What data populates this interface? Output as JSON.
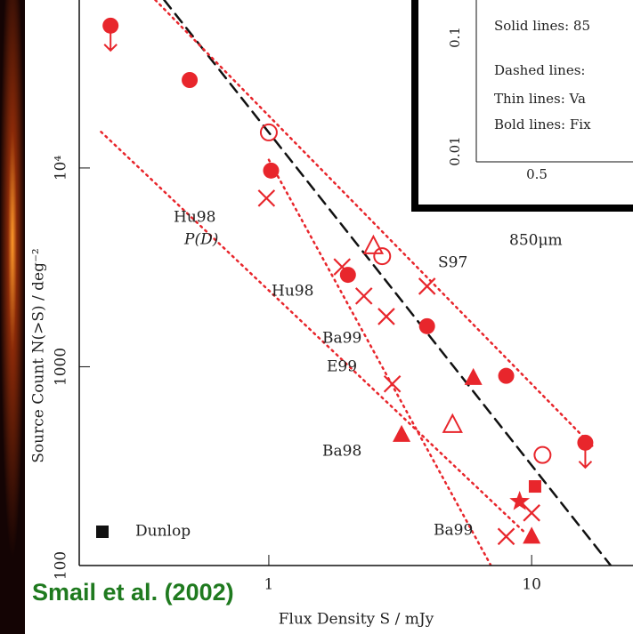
{
  "chart_data": {
    "type": "scatter",
    "xlabel": "Flux Density S / mJy",
    "ylabel": "Source Count N(>S) / deg⁻²",
    "xlog": true,
    "ylog": true,
    "xlim": [
      0.19,
      24.3
    ],
    "ylim": [
      100,
      70000
    ],
    "xticks": [
      1,
      10
    ],
    "yticks": [
      100,
      1000,
      {
        "value": 10000,
        "label": "10⁴"
      }
    ],
    "series": [
      {
        "marker": "circle",
        "color": "#e8262c",
        "x": [
          0.25,
          0.5,
          1.02,
          2.0,
          4.0,
          8.0,
          16
        ],
        "values": [
          52000,
          27700,
          9700,
          2900,
          1600,
          900,
          415
        ],
        "upper_limit": [
          true,
          false,
          false,
          false,
          false,
          false,
          true
        ]
      },
      {
        "marker": "open-circle",
        "color": "#e8262c",
        "x": [
          1.0,
          2.7,
          11
        ],
        "values": [
          15100,
          3600,
          360
        ]
      },
      {
        "marker": "cross",
        "color": "#e8262c",
        "x": [
          0.98,
          1.9,
          2.3,
          2.8,
          2.95,
          4.0,
          8.0,
          10
        ],
        "values": [
          7050,
          3180,
          2270,
          1790,
          820,
          2540,
          140,
          184
        ]
      },
      {
        "marker": "triangle",
        "color": "#e8262c",
        "x": [
          3.2,
          6.0,
          10
        ],
        "values": [
          455,
          880,
          140
        ]
      },
      {
        "marker": "open-triangle",
        "color": "#e8262c",
        "x": [
          2.5,
          5.0
        ],
        "values": [
          4040,
          510
        ]
      },
      {
        "marker": "star",
        "color": "#e8262c",
        "x": [
          9.0
        ],
        "values": [
          210
        ]
      },
      {
        "name": "Dunlop",
        "marker": "square",
        "color": "#e8262c",
        "legend_color": "#111111",
        "x": [
          10.3
        ],
        "values": [
          250
        ]
      }
    ],
    "lines": [
      {
        "style": "dashed",
        "color": "#111111",
        "x": [
          0.4,
          20
        ],
        "values": [
          70000,
          100
        ]
      },
      {
        "style": "dotted",
        "color": "#e8262c",
        "x": [
          0.37,
          17
        ],
        "values": [
          70000,
          400
        ]
      },
      {
        "style": "dotted",
        "color": "#e8262c",
        "x": [
          0.23,
          9.5
        ],
        "values": [
          15200,
          145
        ]
      },
      {
        "style": "dotted",
        "color": "#e8262c",
        "x": [
          1,
          7
        ],
        "values": [
          11000,
          100
        ]
      }
    ],
    "annotations": [
      "Hu98",
      "P(D)",
      "Hu98",
      "Ba99",
      "E99",
      "Ba98",
      "Ba99",
      "S97",
      "850μm"
    ],
    "inset": {
      "legend_lines": [
        "Solid lines: 85",
        "Dashed lines:",
        "Thin lines: Va",
        "Bold lines: Fix"
      ],
      "yticks": [
        "0.1",
        "0.01"
      ],
      "xticks": [
        "0.5"
      ]
    },
    "credit": "Smail et al. (2002)"
  }
}
